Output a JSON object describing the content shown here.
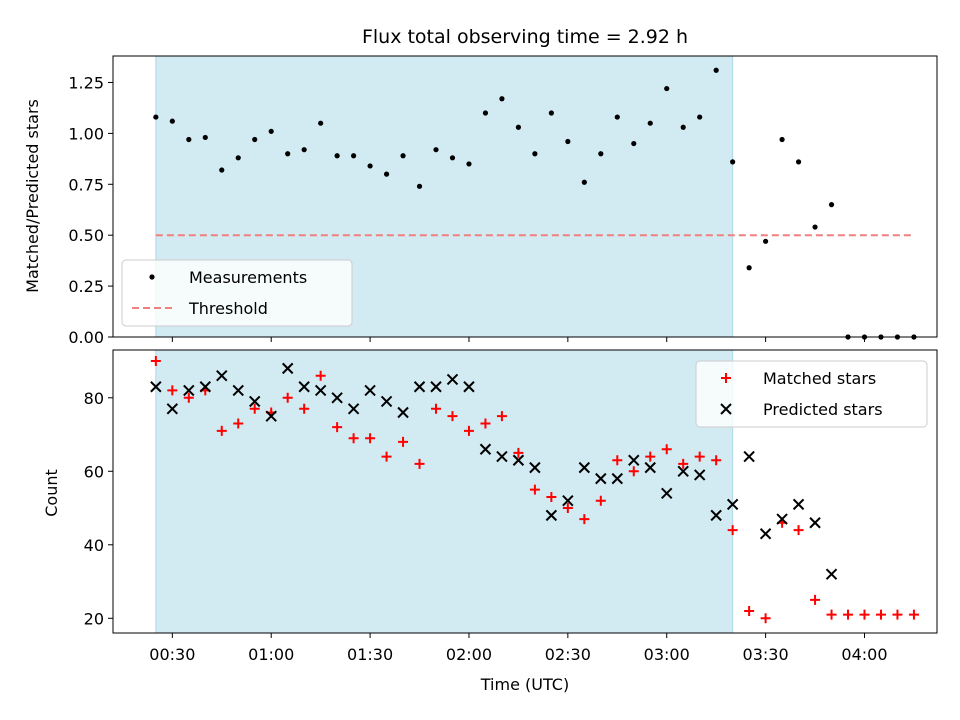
{
  "chart_data": [
    {
      "type": "scatter",
      "title": "Flux total observing time = 2.92 h",
      "xlabel": "",
      "ylabel": "Matched/Predicted stars",
      "ylim": [
        0,
        1.38
      ],
      "yticks": [
        "0.00",
        "0.25",
        "0.50",
        "0.75",
        "1.00",
        "1.25"
      ],
      "yticks_values": [
        0,
        0.25,
        0.5,
        0.75,
        1.0,
        1.25
      ],
      "highlight_span": {
        "start": "00:25",
        "end": "03:20",
        "color": "#add8e6"
      },
      "legend": {
        "position": "lower-left",
        "entries": [
          "Measurements",
          "Threshold"
        ]
      },
      "series": [
        {
          "name": "Measurements",
          "kind": "points",
          "color": "#000000",
          "points": [
            [
              "00:25",
              1.08
            ],
            [
              "00:30",
              1.06
            ],
            [
              "00:35",
              0.97
            ],
            [
              "00:40",
              0.98
            ],
            [
              "00:45",
              0.82
            ],
            [
              "00:50",
              0.88
            ],
            [
              "00:55",
              0.97
            ],
            [
              "01:00",
              1.01
            ],
            [
              "01:05",
              0.9
            ],
            [
              "01:10",
              0.92
            ],
            [
              "01:15",
              1.05
            ],
            [
              "01:20",
              0.89
            ],
            [
              "01:25",
              0.89
            ],
            [
              "01:30",
              0.84
            ],
            [
              "01:35",
              0.8
            ],
            [
              "01:40",
              0.89
            ],
            [
              "01:45",
              0.74
            ],
            [
              "01:50",
              0.92
            ],
            [
              "01:55",
              0.88
            ],
            [
              "02:00",
              0.85
            ],
            [
              "02:05",
              1.1
            ],
            [
              "02:10",
              1.17
            ],
            [
              "02:15",
              1.03
            ],
            [
              "02:20",
              0.9
            ],
            [
              "02:25",
              1.1
            ],
            [
              "02:30",
              0.96
            ],
            [
              "02:35",
              0.76
            ],
            [
              "02:40",
              0.9
            ],
            [
              "02:45",
              1.08
            ],
            [
              "02:50",
              0.95
            ],
            [
              "02:55",
              1.05
            ],
            [
              "03:00",
              1.22
            ],
            [
              "03:05",
              1.03
            ],
            [
              "03:10",
              1.08
            ],
            [
              "03:15",
              1.31
            ],
            [
              "03:20",
              0.86
            ],
            [
              "03:25",
              0.34
            ],
            [
              "03:30",
              0.47
            ],
            [
              "03:35",
              0.97
            ],
            [
              "03:40",
              0.86
            ],
            [
              "03:45",
              0.54
            ],
            [
              "03:50",
              0.65
            ],
            [
              "03:55",
              0.0
            ],
            [
              "04:00",
              0.0
            ],
            [
              "04:05",
              0.0
            ],
            [
              "04:10",
              0.0
            ],
            [
              "04:15",
              0.0
            ]
          ]
        },
        {
          "name": "Threshold",
          "kind": "dashed-line",
          "color": "#f08080",
          "points": [
            [
              "00:25",
              0.5
            ],
            [
              "04:15",
              0.5
            ]
          ]
        }
      ]
    },
    {
      "type": "scatter",
      "title": "",
      "xlabel": "Time (UTC)",
      "ylabel": "Count",
      "ylim": [
        16,
        93
      ],
      "yticks": [
        "20",
        "40",
        "60",
        "80"
      ],
      "yticks_values": [
        20,
        40,
        60,
        80
      ],
      "x_axis": {
        "range": [
          "00:12",
          "04:22"
        ],
        "ticks": [
          "00:30",
          "01:00",
          "01:30",
          "02:00",
          "02:30",
          "03:00",
          "03:30",
          "04:00"
        ]
      },
      "highlight_span": {
        "start": "00:25",
        "end": "03:20",
        "color": "#add8e6"
      },
      "legend": {
        "position": "upper-right",
        "entries": [
          "Matched stars",
          "Predicted stars"
        ]
      },
      "series": [
        {
          "name": "Matched stars",
          "kind": "plus",
          "color": "#ff0000",
          "points": [
            [
              "00:25",
              90
            ],
            [
              "00:30",
              82
            ],
            [
              "00:35",
              80
            ],
            [
              "00:40",
              82
            ],
            [
              "00:45",
              71
            ],
            [
              "00:50",
              73
            ],
            [
              "00:55",
              77
            ],
            [
              "01:00",
              76
            ],
            [
              "01:05",
              80
            ],
            [
              "01:10",
              77
            ],
            [
              "01:15",
              86
            ],
            [
              "01:20",
              72
            ],
            [
              "01:25",
              69
            ],
            [
              "01:30",
              69
            ],
            [
              "01:35",
              64
            ],
            [
              "01:40",
              68
            ],
            [
              "01:45",
              62
            ],
            [
              "01:50",
              77
            ],
            [
              "01:55",
              75
            ],
            [
              "02:00",
              71
            ],
            [
              "02:05",
              73
            ],
            [
              "02:10",
              75
            ],
            [
              "02:15",
              65
            ],
            [
              "02:20",
              55
            ],
            [
              "02:25",
              53
            ],
            [
              "02:30",
              50
            ],
            [
              "02:35",
              47
            ],
            [
              "02:40",
              52
            ],
            [
              "02:45",
              63
            ],
            [
              "02:50",
              60
            ],
            [
              "02:55",
              64
            ],
            [
              "03:00",
              66
            ],
            [
              "03:05",
              62
            ],
            [
              "03:10",
              64
            ],
            [
              "03:15",
              63
            ],
            [
              "03:20",
              44
            ],
            [
              "03:25",
              22
            ],
            [
              "03:30",
              20
            ],
            [
              "03:35",
              46
            ],
            [
              "03:40",
              44
            ],
            [
              "03:45",
              25
            ],
            [
              "03:50",
              21
            ],
            [
              "03:55",
              21
            ],
            [
              "04:00",
              21
            ],
            [
              "04:05",
              21
            ],
            [
              "04:10",
              21
            ],
            [
              "04:15",
              21
            ]
          ]
        },
        {
          "name": "Predicted stars",
          "kind": "x",
          "color": "#000000",
          "points": [
            [
              "00:25",
              83
            ],
            [
              "00:30",
              77
            ],
            [
              "00:35",
              82
            ],
            [
              "00:40",
              83
            ],
            [
              "00:45",
              86
            ],
            [
              "00:50",
              82
            ],
            [
              "00:55",
              79
            ],
            [
              "01:00",
              75
            ],
            [
              "01:05",
              88
            ],
            [
              "01:10",
              83
            ],
            [
              "01:15",
              82
            ],
            [
              "01:20",
              80
            ],
            [
              "01:25",
              77
            ],
            [
              "01:30",
              82
            ],
            [
              "01:35",
              79
            ],
            [
              "01:40",
              76
            ],
            [
              "01:45",
              83
            ],
            [
              "01:50",
              83
            ],
            [
              "01:55",
              85
            ],
            [
              "02:00",
              83
            ],
            [
              "02:05",
              66
            ],
            [
              "02:10",
              64
            ],
            [
              "02:15",
              63
            ],
            [
              "02:20",
              61
            ],
            [
              "02:25",
              48
            ],
            [
              "02:30",
              52
            ],
            [
              "02:35",
              61
            ],
            [
              "02:40",
              58
            ],
            [
              "02:45",
              58
            ],
            [
              "02:50",
              63
            ],
            [
              "02:55",
              61
            ],
            [
              "03:00",
              54
            ],
            [
              "03:05",
              60
            ],
            [
              "03:10",
              59
            ],
            [
              "03:15",
              48
            ],
            [
              "03:20",
              51
            ],
            [
              "03:25",
              64
            ],
            [
              "03:30",
              43
            ],
            [
              "03:35",
              47
            ],
            [
              "03:40",
              51
            ],
            [
              "03:45",
              46
            ],
            [
              "03:50",
              32
            ]
          ]
        }
      ]
    }
  ]
}
